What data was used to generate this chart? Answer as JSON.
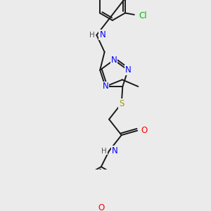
{
  "bg_color": "#ebebeb",
  "atom_colors": {
    "N": "#0000ff",
    "O": "#ff0000",
    "S": "#999900",
    "Cl": "#00bb00",
    "C": "#000000",
    "H": "#555555"
  },
  "font_size_atom": 8.5,
  "font_size_small": 7.5,
  "line_color": "#1a1a1a",
  "line_width": 1.4
}
